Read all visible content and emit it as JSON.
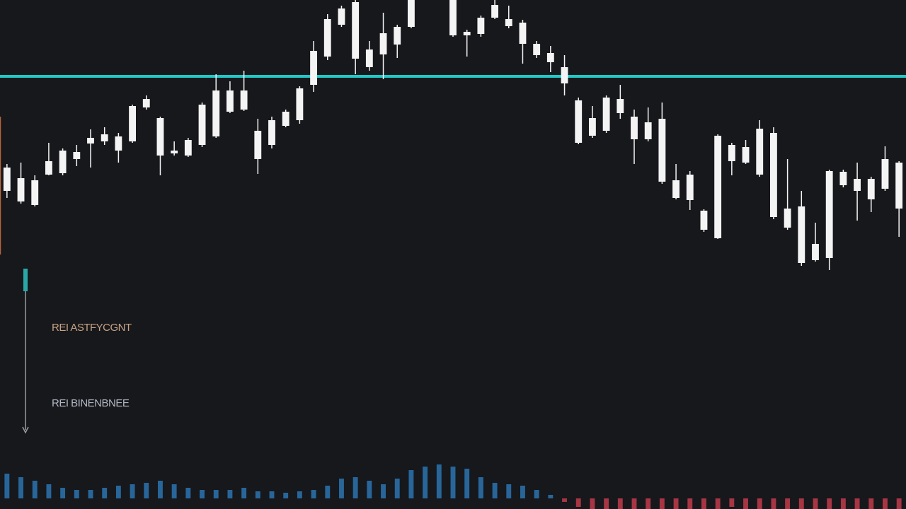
{
  "chart_data": [
    {
      "type": "candlestick",
      "x": [
        0,
        1,
        2,
        3,
        4,
        5,
        6,
        7,
        8,
        9,
        10,
        11,
        12,
        13,
        14,
        15,
        16,
        17,
        18,
        19,
        20,
        21,
        22,
        23,
        24,
        25,
        26,
        27,
        28,
        29,
        32,
        33,
        34,
        35,
        36,
        37,
        38,
        39,
        40,
        41,
        42,
        43,
        44,
        45,
        46,
        47,
        48,
        49,
        50,
        51,
        52,
        53,
        54,
        55,
        56,
        57,
        58,
        59,
        60,
        61,
        62,
        63,
        64
      ],
      "open": [
        450,
        435,
        430,
        473,
        475,
        495,
        517,
        520,
        507,
        520,
        568,
        500,
        503,
        500,
        515,
        527,
        562,
        565,
        495,
        515,
        542,
        550,
        600,
        640,
        685,
        637,
        625,
        643,
        657,
        682,
        670,
        670,
        672,
        695,
        683,
        658,
        642,
        632,
        602,
        518,
        528,
        535,
        560,
        523,
        523,
        463,
        440,
        437,
        395,
        383,
        492,
        490,
        473,
        413,
        398,
        348,
        352,
        355,
        458,
        450,
        438,
        453,
        425
      ],
      "high": [
        488,
        490,
        472,
        518,
        510,
        515,
        537,
        540,
        532,
        572,
        585,
        555,
        520,
        525,
        575,
        615,
        605,
        620,
        552,
        555,
        565,
        598,
        662,
        700,
        712,
        720,
        662,
        702,
        685,
        720,
        720,
        678,
        698,
        720,
        712,
        692,
        662,
        655,
        642,
        582,
        570,
        585,
        600,
        565,
        568,
        575,
        488,
        478,
        424,
        530,
        518,
        522,
        550,
        540,
        495,
        450,
        405,
        480,
        480,
        490,
        470,
        513,
        492
      ],
      "low": [
        440,
        432,
        428,
        472,
        472,
        485,
        483,
        515,
        490,
        518,
        565,
        472,
        500,
        498,
        512,
        525,
        560,
        563,
        474,
        510,
        540,
        545,
        590,
        635,
        682,
        615,
        620,
        608,
        638,
        680,
        668,
        640,
        668,
        693,
        680,
        630,
        638,
        618,
        585,
        516,
        525,
        532,
        552,
        488,
        520,
        460,
        438,
        423,
        392,
        382,
        472,
        488,
        470,
        410,
        395,
        344,
        350,
        338,
        455,
        408,
        420,
        450,
        385
      ],
      "close": [
        483,
        468,
        465,
        492,
        507,
        505,
        525,
        530,
        527,
        570,
        580,
        553,
        507,
        522,
        572,
        592,
        592,
        592,
        535,
        550,
        562,
        595,
        648,
        693,
        708,
        717,
        650,
        673,
        682,
        720,
        720,
        675,
        695,
        713,
        693,
        688,
        658,
        645,
        625,
        578,
        553,
        582,
        580,
        555,
        547,
        552,
        465,
        473,
        422,
        528,
        515,
        512,
        538,
        532,
        425,
        428,
        375,
        478,
        477,
        467,
        467,
        495,
        490
      ],
      "color": "#f4f4f4",
      "xlim": [
        -0.5,
        64.5
      ],
      "ylim": [
        320,
        720
      ],
      "reference_line": {
        "value": 612,
        "color": "#22c8c8"
      }
    },
    {
      "type": "bar",
      "x": [
        0,
        1,
        2,
        3,
        4,
        5,
        6,
        7,
        8,
        9,
        10,
        11,
        12,
        13,
        14,
        15,
        16,
        17,
        18,
        19,
        20,
        21,
        22,
        23,
        24,
        25,
        26,
        27,
        28,
        29,
        30,
        31,
        32,
        33,
        34,
        35,
        36,
        37,
        38,
        39,
        40,
        41,
        42,
        43,
        44,
        45,
        46,
        47,
        48,
        49,
        50,
        51,
        52,
        53,
        54,
        55,
        56,
        57,
        58,
        59,
        60,
        61,
        62,
        63,
        64
      ],
      "values": [
        35,
        30,
        25,
        20,
        15,
        12,
        12,
        15,
        18,
        20,
        22,
        25,
        20,
        15,
        12,
        12,
        12,
        15,
        10,
        10,
        8,
        10,
        12,
        18,
        28,
        30,
        25,
        20,
        28,
        40,
        45,
        48,
        45,
        42,
        30,
        22,
        20,
        18,
        12,
        5,
        -5,
        -12,
        -15,
        -15,
        -15,
        -15,
        -15,
        -15,
        -15,
        -15,
        -15,
        -15,
        -12,
        -15,
        -15,
        -15,
        -15,
        -15,
        -15,
        -15,
        -15,
        -15,
        -15,
        -15,
        -15
      ],
      "color_up": "#2b74b0",
      "color_down": "#c23b4a",
      "xlim": [
        -0.5,
        64.5
      ],
      "ylim": [
        -15,
        65
      ]
    }
  ],
  "annotations": [
    "REI ASTFYCGNT",
    "REI BINENBNEE"
  ]
}
